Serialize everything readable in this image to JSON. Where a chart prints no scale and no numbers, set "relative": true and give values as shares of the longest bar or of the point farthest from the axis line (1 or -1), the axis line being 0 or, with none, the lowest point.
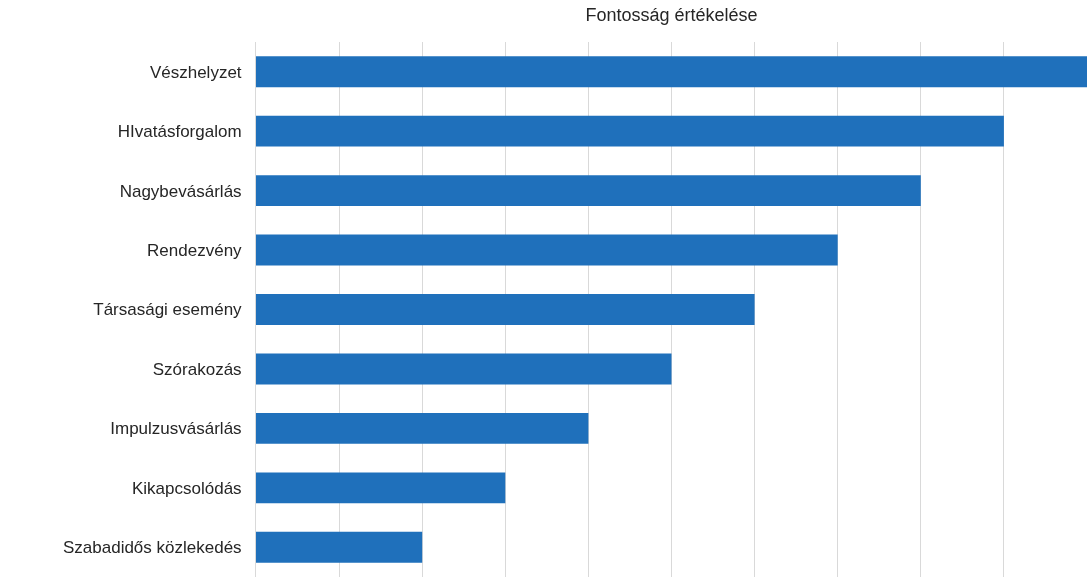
{
  "chart_data": {
    "type": "bar",
    "orientation": "horizontal",
    "relative": true,
    "title": "Fontosság értékelése",
    "categories": [
      "Vészhelyzet",
      "HIvatásforgalom",
      "Nagybevásárlás",
      "Rendezvény",
      "Társasági esemény",
      "Szórakozás",
      "Impulzusvásárlás",
      "Kikapcsolódás",
      "Szabadidős közlekedés"
    ],
    "values": [
      1,
      0.9,
      0.8,
      0.7,
      0.6,
      0.5,
      0.4,
      0.3,
      0.2
    ],
    "color": "#1f70bb",
    "grid": "x",
    "legend": false
  }
}
